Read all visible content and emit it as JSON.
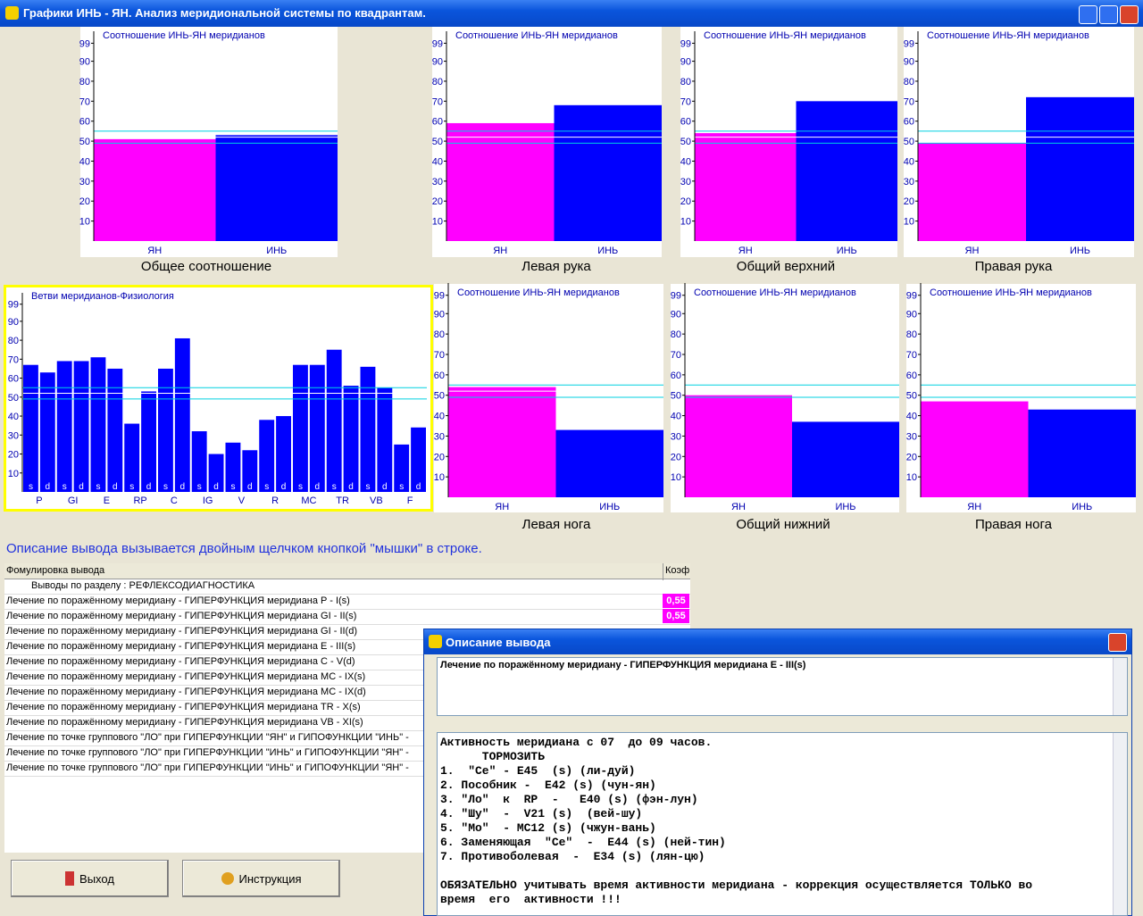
{
  "window_title": "Графики ИНЬ - ЯН.  Анализ меридиональной системы по квадрантам.",
  "chart_data": [
    {
      "type": "bar",
      "title": "Соотношение ИНЬ-ЯН меридианов",
      "caption": "Общее соотношение",
      "categories": [
        "ЯН",
        "ИНЬ"
      ],
      "values": [
        51,
        53
      ],
      "colors": [
        "#ff00ff",
        "#0000ff"
      ],
      "ylim": [
        0,
        105
      ],
      "yticks": [
        10,
        20,
        30,
        40,
        50,
        60,
        70,
        80,
        90,
        99
      ],
      "reference_lines": [
        49,
        52,
        55
      ]
    },
    {
      "type": "bar",
      "title": "Соотношение ИНЬ-ЯН меридианов",
      "caption": "Левая рука",
      "categories": [
        "ЯН",
        "ИНЬ"
      ],
      "values": [
        59,
        68
      ],
      "colors": [
        "#ff00ff",
        "#0000ff"
      ],
      "ylim": [
        0,
        105
      ],
      "yticks": [
        10,
        20,
        30,
        40,
        50,
        60,
        70,
        80,
        90,
        99
      ],
      "reference_lines": [
        49,
        52,
        55
      ]
    },
    {
      "type": "bar",
      "title": "Соотношение ИНЬ-ЯН меридианов",
      "caption": "Общий верхний",
      "categories": [
        "ЯН",
        "ИНЬ"
      ],
      "values": [
        54,
        70
      ],
      "colors": [
        "#ff00ff",
        "#0000ff"
      ],
      "ylim": [
        0,
        105
      ],
      "yticks": [
        10,
        20,
        30,
        40,
        50,
        60,
        70,
        80,
        90,
        99
      ],
      "reference_lines": [
        49,
        52,
        55
      ]
    },
    {
      "type": "bar",
      "title": "Соотношение ИНЬ-ЯН меридианов",
      "caption": "Правая рука",
      "categories": [
        "ЯН",
        "ИНЬ"
      ],
      "values": [
        49,
        72
      ],
      "colors": [
        "#ff00ff",
        "#0000ff"
      ],
      "ylim": [
        0,
        105
      ],
      "yticks": [
        10,
        20,
        30,
        40,
        50,
        60,
        70,
        80,
        90,
        99
      ],
      "reference_lines": [
        49,
        52,
        55
      ]
    },
    {
      "type": "branches",
      "title": "Ветви меридианов-Физиология",
      "groups": [
        "P",
        "GI",
        "E",
        "RP",
        "C",
        "IG",
        "V",
        "R",
        "MC",
        "TR",
        "VB",
        "F"
      ],
      "categories": [
        "s",
        "d",
        "s",
        "d",
        "s",
        "d",
        "s",
        "d",
        "s",
        "d",
        "s",
        "d",
        "s",
        "d",
        "s",
        "d",
        "s",
        "d",
        "s",
        "d",
        "s",
        "d",
        "s",
        "d"
      ],
      "values": [
        67,
        63,
        69,
        69,
        71,
        65,
        36,
        53,
        65,
        81,
        32,
        20,
        26,
        22,
        38,
        40,
        67,
        67,
        75,
        56,
        66,
        55,
        25,
        34
      ],
      "color": "#0000ff",
      "ylim": [
        0,
        105
      ],
      "yticks": [
        10,
        20,
        30,
        40,
        50,
        60,
        70,
        80,
        90,
        99
      ],
      "reference_lines": [
        49,
        52,
        55
      ]
    },
    {
      "type": "bar",
      "title": "Соотношение ИНЬ-ЯН меридианов",
      "caption": "Левая нога",
      "categories": [
        "ЯН",
        "ИНЬ"
      ],
      "values": [
        54,
        33
      ],
      "colors": [
        "#ff00ff",
        "#0000ff"
      ],
      "ylim": [
        0,
        105
      ],
      "yticks": [
        10,
        20,
        30,
        40,
        50,
        60,
        70,
        80,
        90,
        99
      ],
      "reference_lines": [
        49,
        52,
        55
      ]
    },
    {
      "type": "bar",
      "title": "Соотношение ИНЬ-ЯН меридианов",
      "caption": "Общий нижний",
      "categories": [
        "ЯН",
        "ИНЬ"
      ],
      "values": [
        50,
        37
      ],
      "colors": [
        "#ff00ff",
        "#0000ff"
      ],
      "ylim": [
        0,
        105
      ],
      "yticks": [
        10,
        20,
        30,
        40,
        50,
        60,
        70,
        80,
        90,
        99
      ],
      "reference_lines": [
        49,
        52,
        55
      ]
    },
    {
      "type": "bar",
      "title": "Соотношение ИНЬ-ЯН меридианов",
      "caption": "Правая нога",
      "categories": [
        "ЯН",
        "ИНЬ"
      ],
      "values": [
        47,
        43
      ],
      "colors": [
        "#ff00ff",
        "#0000ff"
      ],
      "ylim": [
        0,
        105
      ],
      "yticks": [
        10,
        20,
        30,
        40,
        50,
        60,
        70,
        80,
        90,
        99
      ],
      "reference_lines": [
        49,
        52,
        55
      ]
    }
  ],
  "hint": "Описание вывода вызывается двойным щелчком кнопкой \"мышки\" в строке.",
  "table": {
    "headers": [
      "Фомулировка вывода",
      "Коэф"
    ],
    "section": "Выводы по разделу : РЕФЛЕКСОДИАГНОСТИКА",
    "rows": [
      [
        "Лечение по поражённому меридиану - ГИПЕРФУНКЦИЯ меридиана P - I(s)",
        "0,55"
      ],
      [
        "Лечение по поражённому меридиану - ГИПЕРФУНКЦИЯ меридиана GI - II(s)",
        "0,55"
      ],
      [
        "Лечение по поражённому меридиану - ГИПЕРФУНКЦИЯ меридиана GI - II(d)"
      ],
      [
        "Лечение по поражённому меридиану - ГИПЕРФУНКЦИЯ меридиана E - III(s)"
      ],
      [
        "Лечение по поражённому меридиану - ГИПЕРФУНКЦИЯ меридиана C - V(d)"
      ],
      [
        "Лечение по поражённому меридиану - ГИПЕРФУНКЦИЯ меридиана MC - IX(s)"
      ],
      [
        "Лечение по поражённому меридиану - ГИПЕРФУНКЦИЯ меридиана MC - IX(d)"
      ],
      [
        "Лечение по поражённому меридиану - ГИПЕРФУНКЦИЯ меридиана TR - X(s)"
      ],
      [
        "Лечение по поражённому меридиану - ГИПЕРФУНКЦИЯ меридиана VB - XI(s)"
      ],
      [
        "Лечение по точке группового \"ЛО\" при ГИПЕРФУНКЦИИ \"ЯН\" и ГИПОФУНКЦИИ \"ИНЬ\" -"
      ],
      [
        "Лечение по точке группового \"ЛО\" при ГИПЕРФУНКЦИИ \"ИНЬ\" и ГИПОФУНКЦИИ \"ЯН\" -"
      ],
      [
        "Лечение по точке группового \"ЛО\" при ГИПЕРФУНКЦИИ \"ИНЬ\" и ГИПОФУНКЦИИ \"ЯН\" -"
      ]
    ]
  },
  "buttons": [
    "Выход",
    "Инструкция"
  ],
  "dialog": {
    "title": "Описание вывода",
    "heading": "Лечение по поражённому меридиану - ГИПЕРФУНКЦИЯ меридиана E - III(s)",
    "paragraphs": [
      [
        "Активность меридиана с 07  до 09 часов.",
        "      ТОРМОЗИТЬ",
        "1.  \"Се\" - Е45  (s) (ли-дуй)",
        "2. Пособник -  Е42 (s) (чун-ян)",
        "3. \"Ло\"  к  RP  -   Е40 (s) (фэн-лун)",
        "4. \"Шу\"  -  V21 (s)  (вей-шу)",
        "5. \"Мо\"  - MC12 (s) (чжун-вань)",
        "6. Заменяющая  \"Се\"  -  Е44 (s) (ней-тин)",
        "7. Противоболевая  -  Е34 (s) (лян-цю)"
      ],
      [
        "ОБЯЗАТЕЛЬНО учитывать время активности меридиана - коррекция осуществляется ТОЛЬКО во",
        "время  его  активности !!!"
      ]
    ]
  }
}
